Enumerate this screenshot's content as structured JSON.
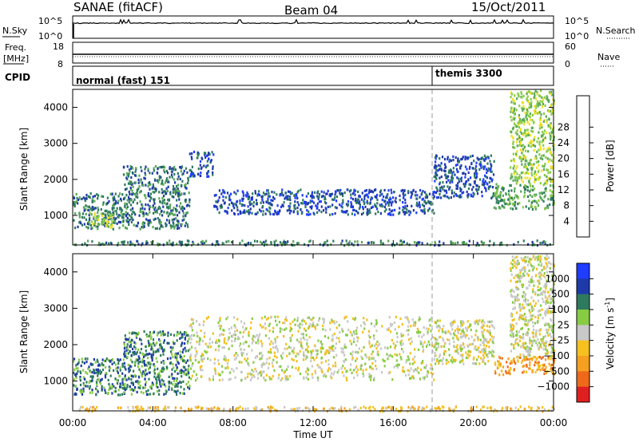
{
  "header": {
    "title": "SANAE (fitACF)",
    "beam": "Beam 04",
    "date": "15/Oct/2011"
  },
  "status_panels": {
    "nsky_label": "N.Sky",
    "nsearch_label": "N.Search",
    "noise_ticks": [
      "10^5",
      "10^0"
    ],
    "freq_label_1": "Freq.",
    "freq_label_2": "[MHz]",
    "freq_ticks": [
      "18",
      "8"
    ],
    "nave_label": "Nave",
    "nave_ticks": [
      "60",
      "0"
    ],
    "cpid_label": "CPID",
    "cpid_programs": [
      {
        "name": "normal (fast) 151",
        "start_hour": 0
      },
      {
        "name": "themis 3300",
        "start_hour": 18
      }
    ]
  },
  "chart_data": [
    {
      "type": "heatmap",
      "parameter": "Power",
      "ylabel": "Slant Range [km]",
      "ylim": [
        180,
        4500
      ],
      "yticks": [
        1000,
        2000,
        3000,
        4000
      ],
      "xlim": [
        0,
        24
      ],
      "colorbar": {
        "label": "Power [dB]",
        "ticks": [
          "4",
          "8",
          "12",
          "16",
          "20",
          "24",
          "28"
        ],
        "colors": [
          "#1f3cff",
          "#1e3aa8",
          "#2e7a5e",
          "#5aa858",
          "#88cc44",
          "#f0e020",
          "#f5a020",
          "#ee6a1a",
          "#e02020"
        ]
      },
      "echo_regions": [
        {
          "t0": 0.0,
          "t1": 2.5,
          "r0": 650,
          "r1": 1650,
          "level": 2
        },
        {
          "t0": 0.8,
          "t1": 2.0,
          "r0": 650,
          "r1": 1100,
          "level": 4
        },
        {
          "t0": 2.5,
          "t1": 5.8,
          "r0": 650,
          "r1": 2400,
          "level": 2
        },
        {
          "t0": 5.8,
          "t1": 7.0,
          "r0": 2100,
          "r1": 2800,
          "level": 1
        },
        {
          "t0": 7.0,
          "t1": 18.0,
          "r0": 1050,
          "r1": 1750,
          "level": 1
        },
        {
          "t0": 18.0,
          "t1": 21.0,
          "r0": 1500,
          "r1": 2700,
          "level": 1
        },
        {
          "t0": 21.0,
          "t1": 24.0,
          "r0": 1200,
          "r1": 1900,
          "level": 3
        },
        {
          "t0": 21.8,
          "t1": 24.0,
          "r0": 1900,
          "r1": 4500,
          "level": 4
        },
        {
          "t0": 0.0,
          "t1": 24.0,
          "r0": 200,
          "r1": 330,
          "level": 2
        }
      ]
    },
    {
      "type": "heatmap",
      "parameter": "Velocity",
      "ylabel": "Slant Range [km]",
      "ylim": [
        180,
        4500
      ],
      "yticks": [
        1000,
        2000,
        3000,
        4000
      ],
      "xlim": [
        0,
        24
      ],
      "xticks": [
        "00:00",
        "04:00",
        "08:00",
        "12:00",
        "16:00",
        "20:00",
        "00:00"
      ],
      "xlabel": "Time UT",
      "colorbar": {
        "label": "Velocity [m s",
        "label_exponent": "-1",
        "label_close": "]",
        "ticks": [
          "1000",
          "500",
          "100",
          "25",
          "−25",
          "−100",
          "−500",
          "−1000"
        ],
        "colors": [
          "#1f3cff",
          "#1e3aa8",
          "#2e7a5e",
          "#88cc44",
          "#c8c8c8",
          "#f5c020",
          "#f5a020",
          "#ee6a1a",
          "#e02020"
        ]
      },
      "echo_regions": [
        {
          "t0": 0.0,
          "t1": 2.5,
          "r0": 650,
          "r1": 1650,
          "level": 2
        },
        {
          "t0": 2.5,
          "t1": 5.8,
          "r0": 650,
          "r1": 2400,
          "level": 2
        },
        {
          "t0": 5.8,
          "t1": 18.0,
          "r0": 1050,
          "r1": 2800,
          "level": 4
        },
        {
          "t0": 18.0,
          "t1": 21.0,
          "r0": 1500,
          "r1": 2700,
          "level": 4
        },
        {
          "t0": 21.0,
          "t1": 24.0,
          "r0": 1200,
          "r1": 1700,
          "level": 6
        },
        {
          "t0": 21.8,
          "t1": 24.0,
          "r0": 1700,
          "r1": 4500,
          "level": 4
        },
        {
          "t0": 0.0,
          "t1": 24.0,
          "r0": 200,
          "r1": 330,
          "level": 5
        }
      ]
    }
  ]
}
